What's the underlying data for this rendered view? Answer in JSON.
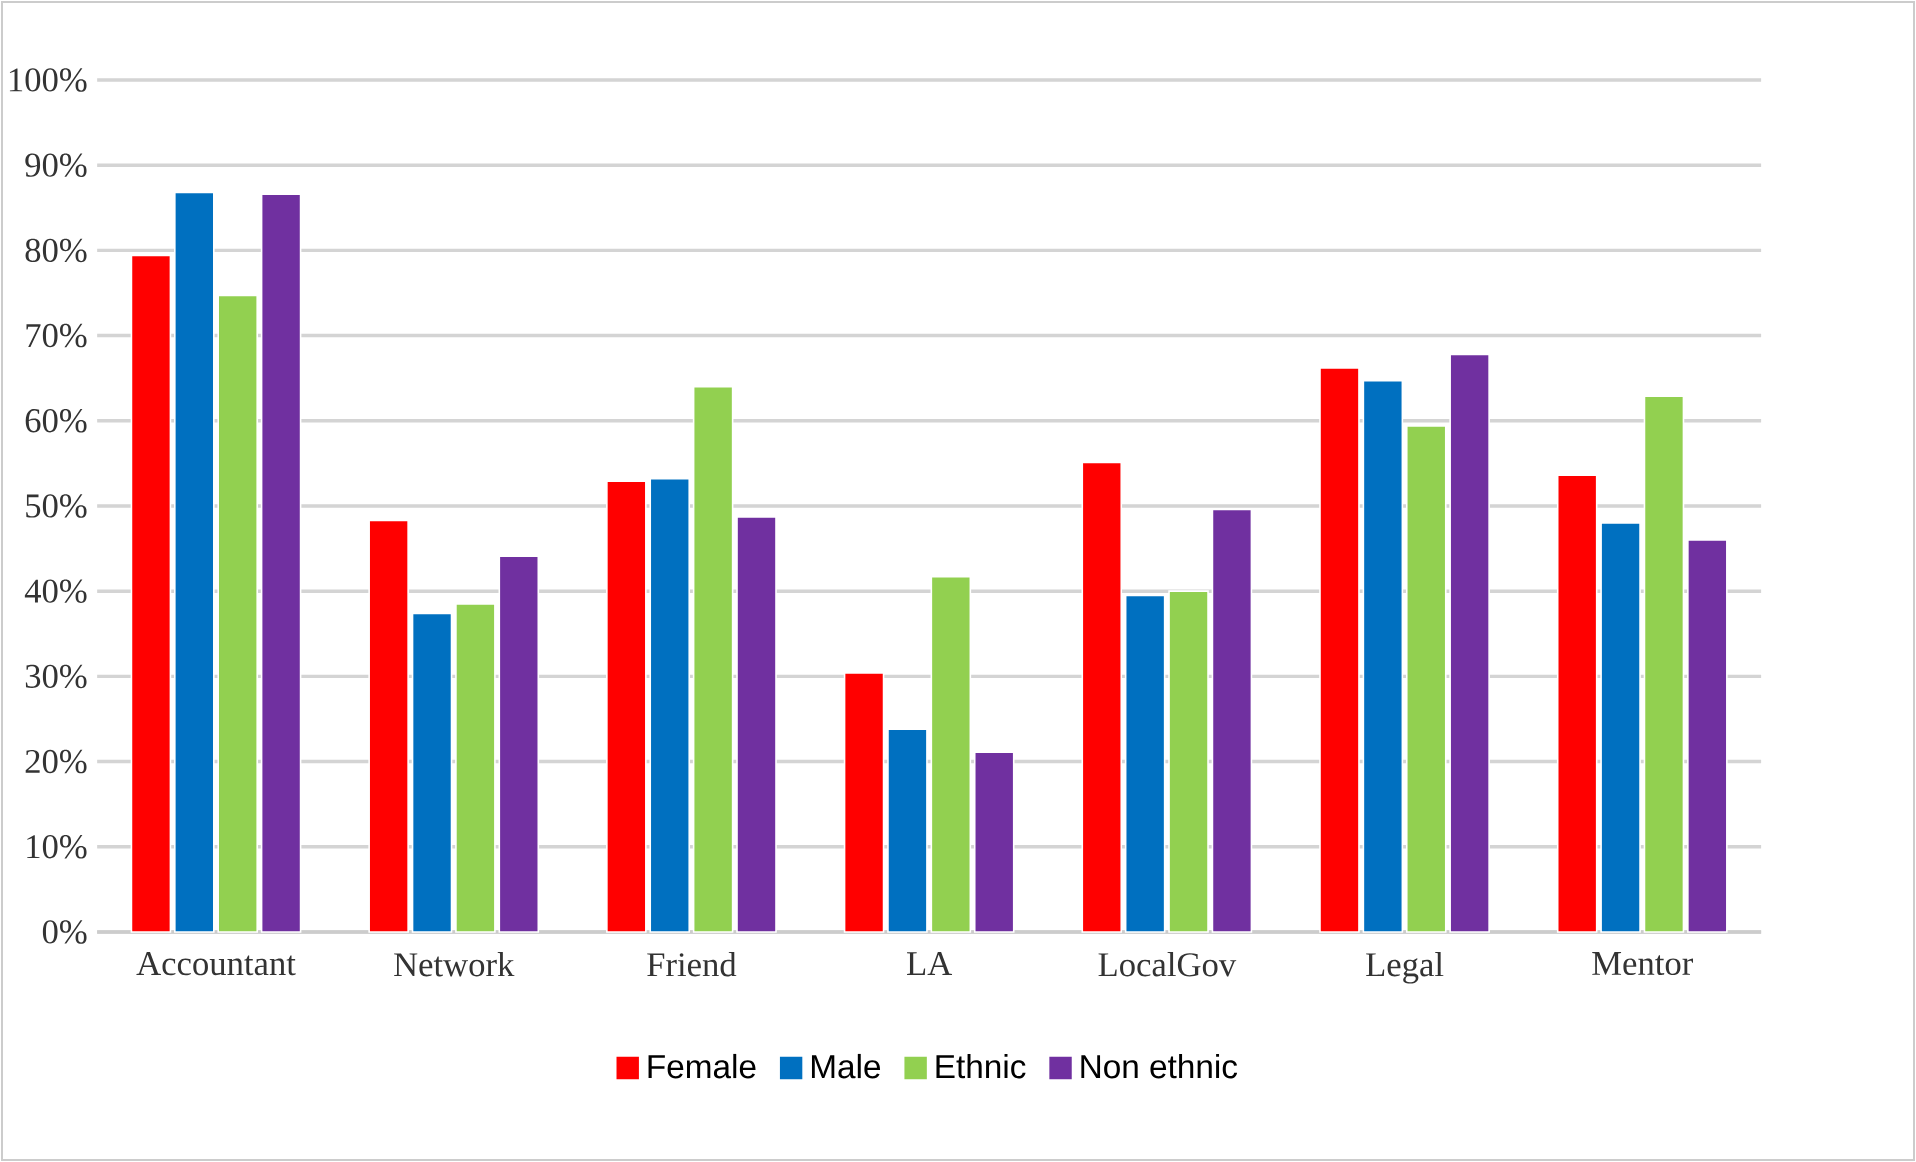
{
  "chart_data": {
    "type": "bar",
    "categories": [
      "Accountant",
      "Network",
      "Friend",
      "LA",
      "LocalGov",
      "Legal",
      "Mentor"
    ],
    "series": [
      {
        "name": "Female",
        "color": "#ff0000",
        "values": [
          0.794,
          0.483,
          0.529,
          0.304,
          0.551,
          0.662,
          0.536
        ]
      },
      {
        "name": "Male",
        "color": "#0070c0",
        "values": [
          0.868,
          0.374,
          0.532,
          0.238,
          0.395,
          0.647,
          0.48
        ]
      },
      {
        "name": "Ethnic",
        "color": "#92d050",
        "values": [
          0.747,
          0.385,
          0.64,
          0.417,
          0.4,
          0.594,
          0.629
        ]
      },
      {
        "name": "Non ethnic",
        "color": "#7030a0",
        "values": [
          0.866,
          0.441,
          0.487,
          0.211,
          0.496,
          0.678,
          0.46
        ]
      }
    ],
    "ylim": [
      0,
      1
    ],
    "yticks": [
      {
        "value": 0,
        "label": "0%"
      },
      {
        "value": 0.1,
        "label": "10%"
      },
      {
        "value": 0.2,
        "label": "20%"
      },
      {
        "value": 0.3,
        "label": "30%"
      },
      {
        "value": 0.4,
        "label": "40%"
      },
      {
        "value": 0.5,
        "label": "50%"
      },
      {
        "value": 0.6,
        "label": "60%"
      },
      {
        "value": 0.7,
        "label": "70%"
      },
      {
        "value": 0.8,
        "label": "80%"
      },
      {
        "value": 0.9,
        "label": "90%"
      },
      {
        "value": 1,
        "label": "100%"
      }
    ],
    "grid": "y",
    "legend": "bottom"
  }
}
